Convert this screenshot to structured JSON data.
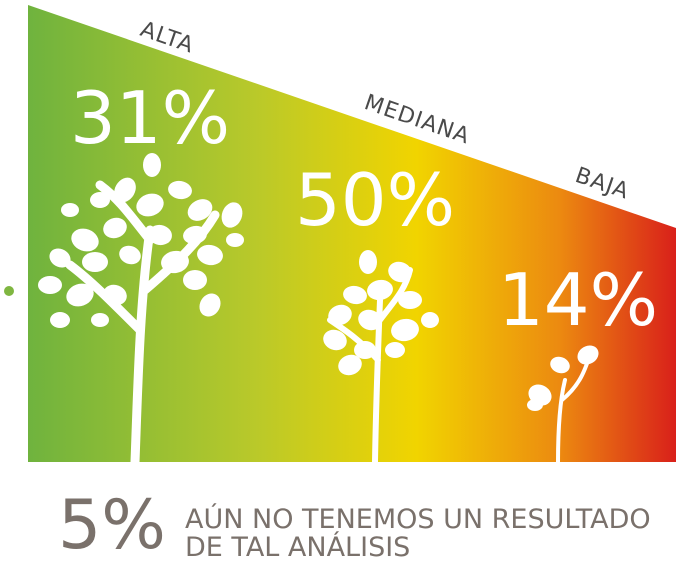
{
  "levels": [
    {
      "label": "ALTA",
      "value": "31%"
    },
    {
      "label": "MEDIANA",
      "value": "50%"
    },
    {
      "label": "BAJA",
      "value": "14%"
    }
  ],
  "footnote": {
    "value": "5%",
    "lines": [
      "AÚN NO TENEMOS UN RESULTADO",
      "DE TAL ANÁLISIS"
    ]
  }
}
